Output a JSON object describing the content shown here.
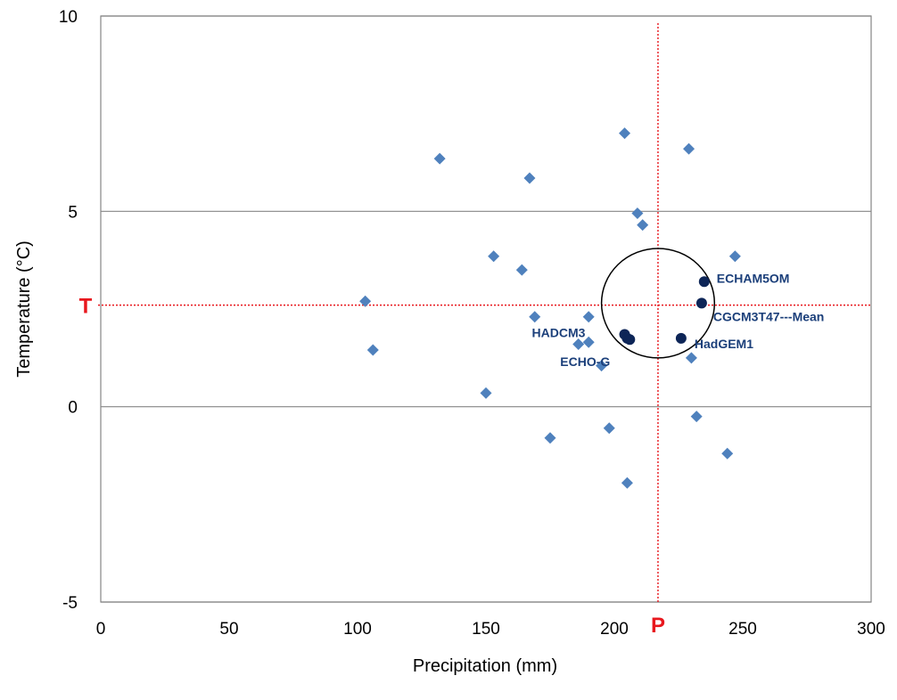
{
  "chart_data": {
    "type": "scatter",
    "xlabel": "Precipitation (mm)",
    "ylabel": "Temperature (°C)",
    "xlim": [
      0,
      300
    ],
    "ylim": [
      -5,
      10
    ],
    "x_ticks": [
      0,
      50,
      100,
      150,
      200,
      250,
      300
    ],
    "y_ticks": [
      -5,
      0,
      5,
      10
    ],
    "grid": "horizontal",
    "legend": "none",
    "series": [
      {
        "marker": "diamond",
        "color": "#4f81bd",
        "points": [
          {
            "x": 103,
            "y": 2.7
          },
          {
            "x": 106,
            "y": 1.45
          },
          {
            "x": 132,
            "y": 6.35
          },
          {
            "x": 150,
            "y": 0.35
          },
          {
            "x": 153,
            "y": 3.85
          },
          {
            "x": 164,
            "y": 3.5
          },
          {
            "x": 167,
            "y": 5.85
          },
          {
            "x": 169,
            "y": 2.3
          },
          {
            "x": 175,
            "y": -0.8
          },
          {
            "x": 186,
            "y": 1.6
          },
          {
            "x": 190,
            "y": 2.3
          },
          {
            "x": 190,
            "y": 1.65
          },
          {
            "x": 195,
            "y": 1.05
          },
          {
            "x": 198,
            "y": -0.55
          },
          {
            "x": 204,
            "y": 7.0
          },
          {
            "x": 205,
            "y": -1.95
          },
          {
            "x": 209,
            "y": 4.95
          },
          {
            "x": 211,
            "y": 4.65
          },
          {
            "x": 229,
            "y": 6.6
          },
          {
            "x": 230,
            "y": 1.25
          },
          {
            "x": 232,
            "y": -0.25
          },
          {
            "x": 244,
            "y": -1.2
          },
          {
            "x": 247,
            "y": 3.85
          }
        ]
      },
      {
        "marker": "circle",
        "color": "#0d2557",
        "points": [
          {
            "x": 204,
            "y": 1.85,
            "label": "HADCM3"
          },
          {
            "x": 205,
            "y": 1.75
          },
          {
            "x": 206,
            "y": 1.72,
            "label": "ECHO-G"
          },
          {
            "x": 226,
            "y": 1.75,
            "label": "HadGEM1"
          },
          {
            "x": 234,
            "y": 2.65,
            "label": "CGCM3T47---Mean"
          },
          {
            "x": 235,
            "y": 3.2,
            "label": "ECHAM5OM"
          }
        ]
      }
    ],
    "reference_lines": {
      "color": "#e8171d",
      "x": {
        "value": 217,
        "label": "P"
      },
      "y": {
        "value": 2.6,
        "label": "T"
      }
    },
    "ellipse": {
      "cx": 217,
      "cy": 2.65,
      "rx": 22,
      "ry": 1.4,
      "color": "#000000"
    }
  }
}
